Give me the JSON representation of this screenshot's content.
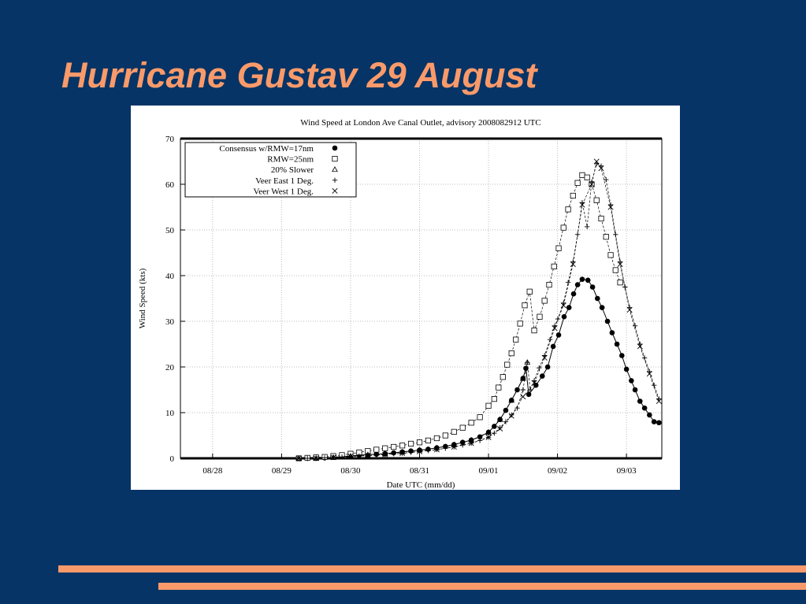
{
  "title": "Hurricane Gustav 29 August",
  "chart_data": {
    "type": "scatter",
    "title": "Wind Speed at London Ave Canal Outlet, advisory 2008082912 UTC",
    "x_label": "Date UTC (mm/dd)",
    "y_label": "Wind Speed (kts)",
    "xlim": [
      -11.2,
      156.3
    ],
    "ylim": [
      0,
      70
    ],
    "xticks": [
      {
        "value": 0,
        "label": "08/28"
      },
      {
        "value": 24,
        "label": "08/29"
      },
      {
        "value": 48,
        "label": "08/30"
      },
      {
        "value": 72,
        "label": "08/31"
      },
      {
        "value": 96,
        "label": "09/01"
      },
      {
        "value": 120,
        "label": "09/02"
      },
      {
        "value": 144,
        "label": "09/03"
      }
    ],
    "yticks": [
      0,
      10,
      20,
      30,
      40,
      50,
      60,
      70
    ],
    "grid": true,
    "legend": "upper left",
    "series": [
      {
        "name": "Consensus w/RMW=17nm",
        "color": "#000000",
        "marker": "circle",
        "line": "solid",
        "x": [
          30,
          33,
          36,
          39,
          42,
          45,
          48,
          51,
          54,
          57,
          60,
          63,
          66,
          69,
          72,
          75,
          78,
          81,
          84,
          87,
          90,
          93,
          96,
          98,
          100,
          102,
          104,
          106,
          108,
          109,
          110,
          112.5,
          114.7,
          116.6,
          118.5,
          120.4,
          122.3,
          124,
          125.6,
          127,
          128.6,
          130.6,
          132.2,
          133.9,
          135.5,
          137.4,
          139,
          140.7,
          142.4,
          144,
          145.7,
          147,
          148.7,
          150.3,
          152,
          153.6,
          155.3
        ],
        "values": [
          0,
          0,
          0,
          0.1,
          0.2,
          0.4,
          0.5,
          0.7,
          0.8,
          0.9,
          1.0,
          1.2,
          1.4,
          1.6,
          1.8,
          2.0,
          2.3,
          2.6,
          3.0,
          3.5,
          4.0,
          4.7,
          5.7,
          7,
          8.5,
          10.5,
          12.7,
          15,
          17.5,
          19.7,
          14,
          16,
          18,
          20,
          24.5,
          27,
          31,
          33,
          36,
          38,
          39.2,
          39,
          37.5,
          35,
          33,
          30,
          27.5,
          25,
          22.5,
          19.5,
          17,
          15,
          12.5,
          11,
          9.5,
          8,
          7.8
        ]
      },
      {
        "name": "RMW=25nm",
        "color": "#000000",
        "marker": "square",
        "line": "dashed",
        "x": [
          30,
          33,
          36,
          39,
          42,
          45,
          48,
          51,
          54,
          57,
          60,
          63,
          66,
          69,
          72,
          75,
          78,
          81,
          84,
          87,
          90,
          93,
          96,
          98,
          99.5,
          101,
          102.5,
          104,
          105.5,
          107,
          108.6,
          110.3,
          111.9,
          113.8,
          115.5,
          117.1,
          118.8,
          120.4,
          122.1,
          123.7,
          125.4,
          127,
          128.6,
          130.3,
          131.9,
          133.6,
          135.2,
          136.9,
          138.5,
          140.2,
          141.8
        ],
        "values": [
          0,
          0.1,
          0.2,
          0.3,
          0.5,
          0.7,
          1.0,
          1.3,
          1.6,
          1.9,
          2.2,
          2.5,
          2.8,
          3.2,
          3.5,
          3.9,
          4.4,
          5.0,
          5.8,
          6.7,
          7.8,
          9.0,
          11.5,
          13,
          15.5,
          17.8,
          20.5,
          23,
          26,
          29.5,
          33.5,
          36.5,
          28,
          31,
          34.5,
          38,
          42,
          46,
          50.5,
          54.5,
          57.5,
          60.3,
          62,
          61.5,
          60,
          56.5,
          52.5,
          48.5,
          44.5,
          41.2,
          38.5
        ]
      },
      {
        "name": "20% Slower",
        "color": "#000000",
        "marker": "triangle",
        "line": "dashed",
        "x": [
          30,
          36,
          42,
          48,
          54,
          60,
          66,
          72,
          78,
          84,
          90,
          96,
          100,
          104,
          108,
          109.5
        ],
        "values": [
          0,
          0,
          0.2,
          0.5,
          0.8,
          1.0,
          1.4,
          1.8,
          2.3,
          3.0,
          4.0,
          5.7,
          8.5,
          12.7,
          17.5,
          21
        ]
      },
      {
        "name": "Veer East 1 Deg.",
        "color": "#000000",
        "marker": "plus",
        "line": "dashed",
        "x": [
          30,
          33,
          36,
          39,
          42,
          45,
          48,
          51,
          54,
          57,
          60,
          63,
          66,
          69,
          72,
          75,
          78,
          81,
          84,
          87,
          90,
          93,
          96,
          98,
          100,
          102,
          104,
          106,
          108,
          109.5,
          110.5,
          111.9,
          113.6,
          115.5,
          117.4,
          119,
          120.1,
          122.1,
          123.7,
          125.4,
          127,
          128.6,
          130.3,
          131.9,
          133.6,
          135.2,
          136.9,
          138.5,
          140.2,
          141.8,
          143.5,
          145.1,
          147,
          148.7,
          150.3,
          152,
          153.6,
          155.3
        ],
        "values": [
          0,
          0,
          0,
          0.1,
          0.2,
          0.3,
          0.4,
          0.5,
          0.6,
          0.7,
          0.8,
          1.0,
          1.1,
          1.3,
          1.5,
          1.7,
          1.9,
          2.2,
          2.5,
          2.9,
          3.3,
          3.9,
          4.6,
          5.5,
          6.7,
          8,
          9.5,
          11,
          15,
          21,
          15,
          17,
          19.8,
          22.5,
          26,
          29,
          30.5,
          34,
          38.5,
          43,
          49,
          56,
          50.7,
          60.5,
          64.5,
          64,
          61,
          55.5,
          49,
          43,
          37.5,
          33,
          29,
          25,
          22,
          19,
          16,
          13
        ]
      },
      {
        "name": "Veer West 1 Deg.",
        "color": "#000000",
        "marker": "cross",
        "line": "dashed",
        "x": [
          30,
          36,
          42,
          48,
          54,
          60,
          66,
          72,
          78,
          84,
          90,
          96,
          100,
          104,
          108,
          111.9,
          115.5,
          119,
          122.1,
          125.4,
          128.6,
          131.9,
          133.6,
          135.2,
          138.5,
          141.8,
          145.1,
          148.7,
          152,
          155.3
        ],
        "values": [
          0,
          0,
          0.2,
          0.4,
          0.6,
          0.8,
          1.1,
          1.5,
          1.9,
          2.5,
          3.3,
          4.6,
          6.5,
          9.3,
          13.5,
          16.5,
          22,
          28.5,
          33.5,
          42.5,
          55.5,
          60,
          65,
          63.5,
          55,
          42.5,
          32.5,
          24.5,
          18.5,
          12.5
        ]
      }
    ]
  }
}
